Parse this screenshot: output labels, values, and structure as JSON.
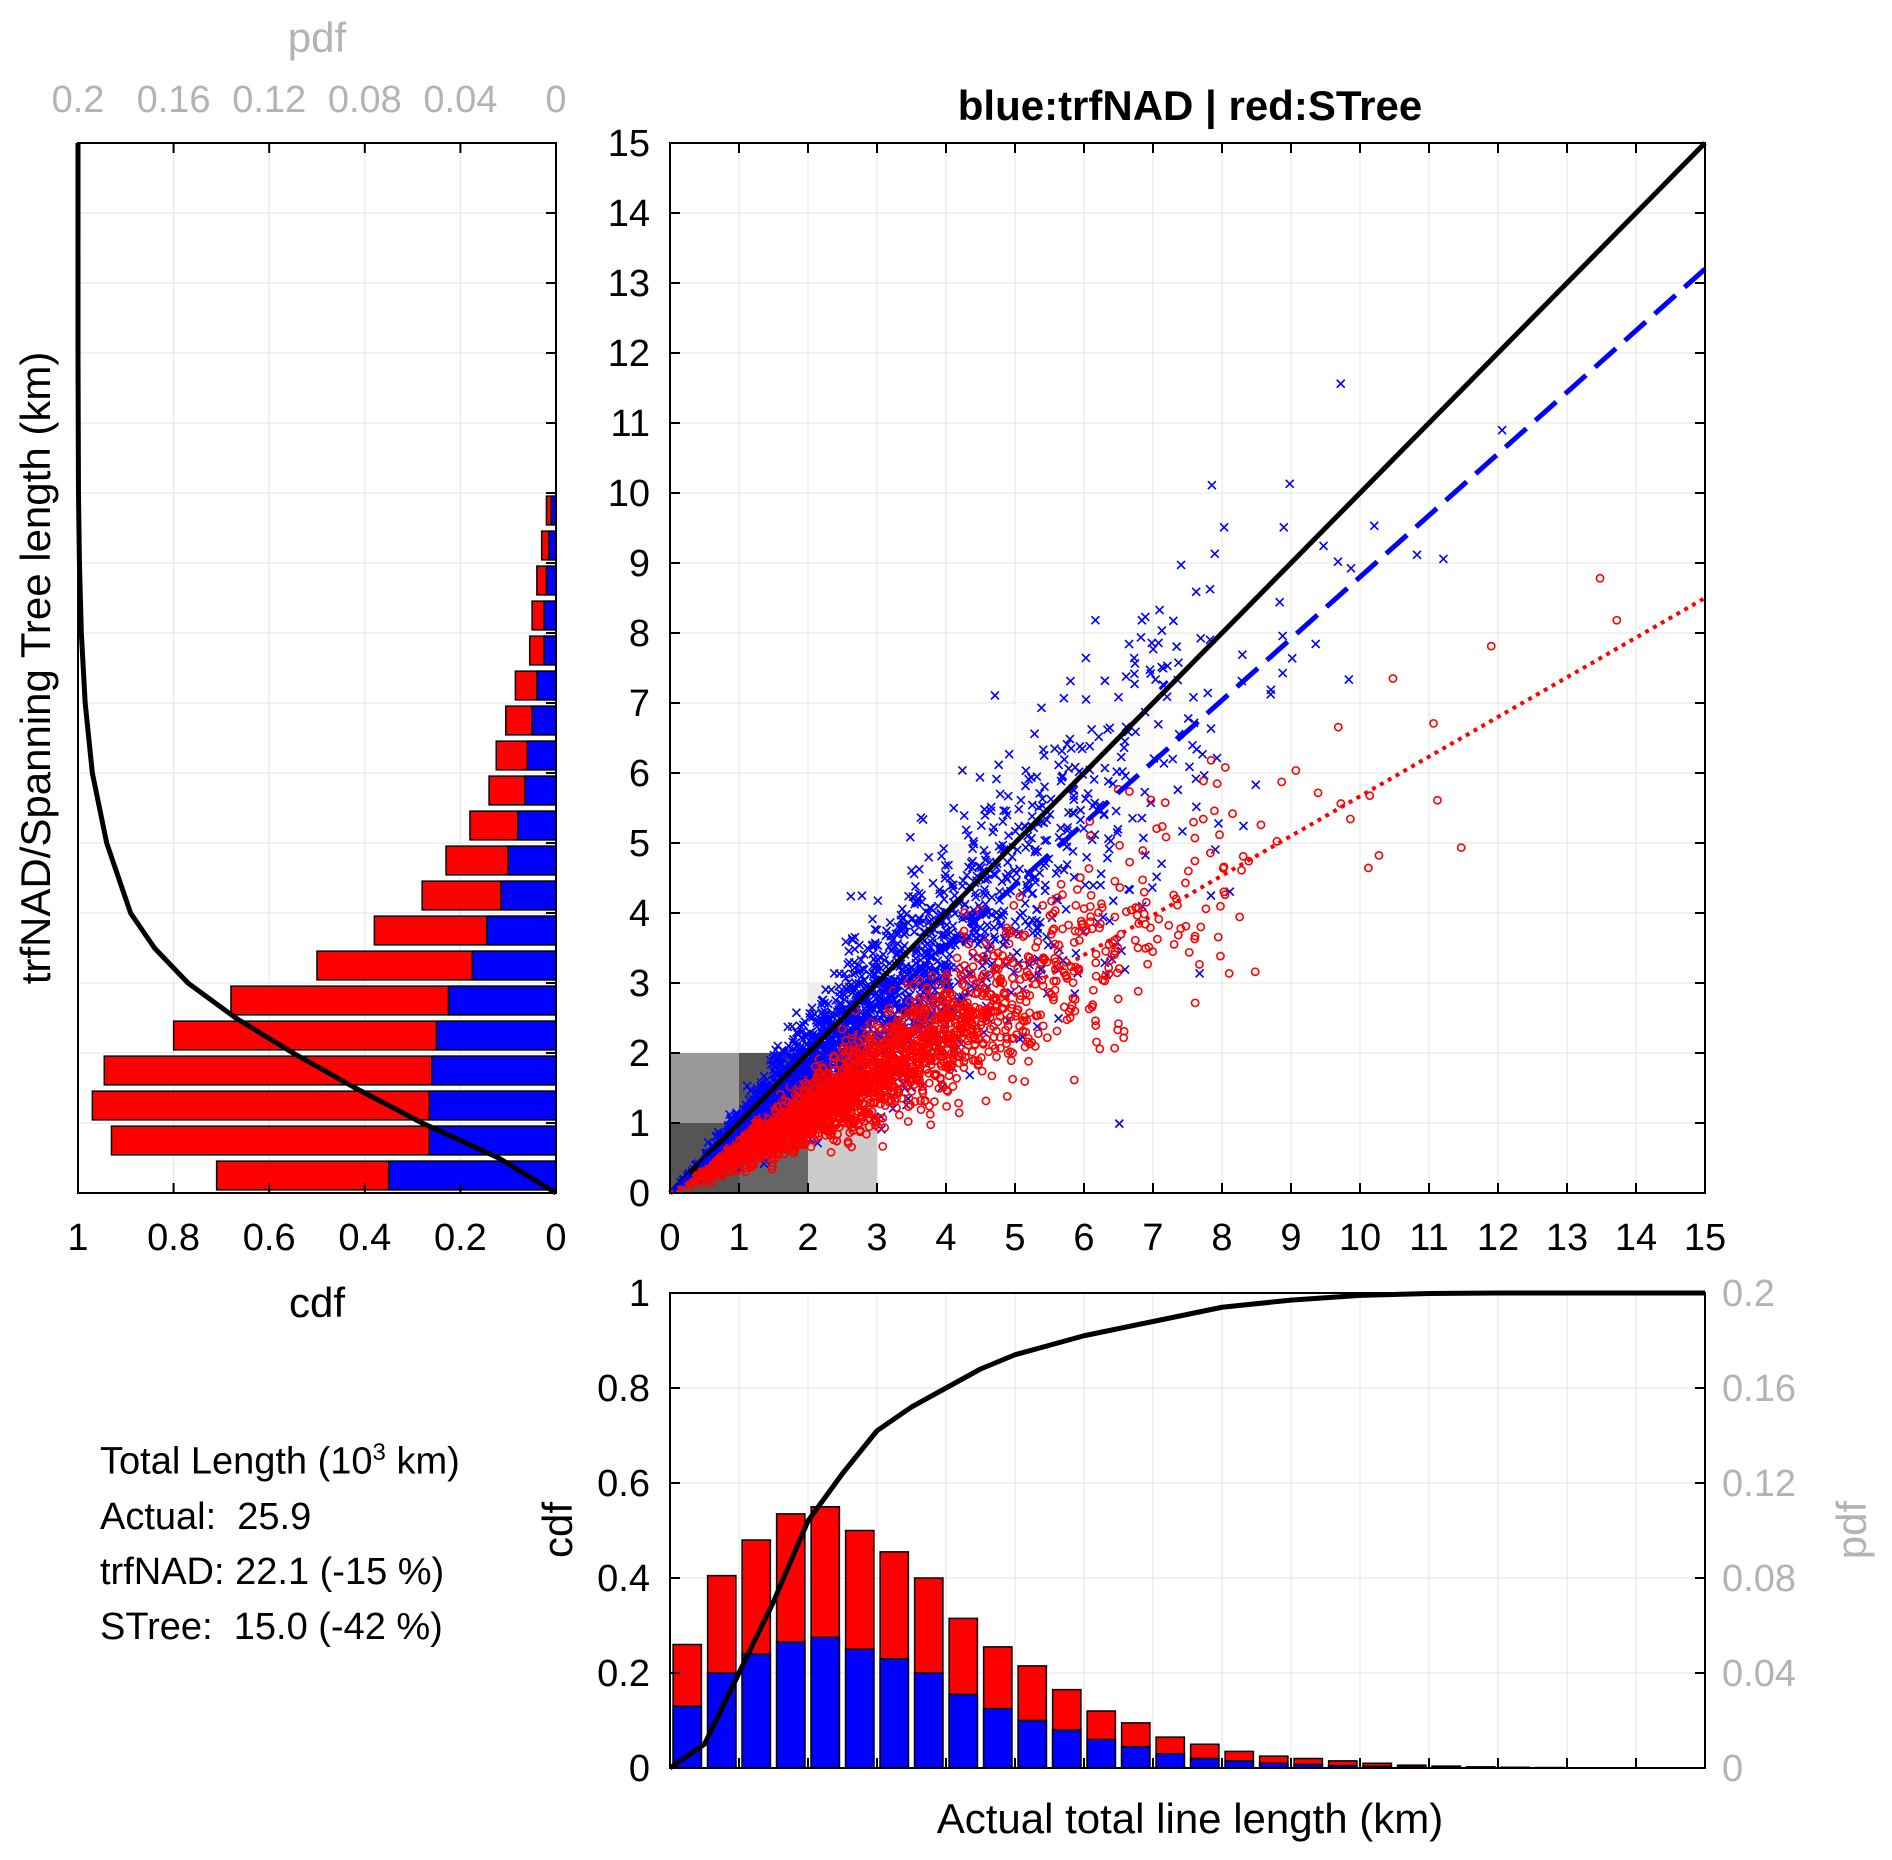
{
  "chart_data": [
    {
      "type": "scatter",
      "panel": "main",
      "title": "blue:trfNAD | red:STree",
      "xlabel": "",
      "ylabel": "",
      "xlim": [
        0,
        15
      ],
      "ylim": [
        0,
        15
      ],
      "xticks": [
        "0",
        "1",
        "2",
        "3",
        "4",
        "5",
        "6",
        "7",
        "8",
        "9",
        "10",
        "11",
        "12",
        "13",
        "14",
        "15"
      ],
      "yticks": [
        "0",
        "1",
        "2",
        "3",
        "4",
        "5",
        "6",
        "7",
        "8",
        "9",
        "10",
        "11",
        "12",
        "13",
        "14",
        "15"
      ],
      "series": [
        {
          "name": "trfNAD",
          "color": "#0000ff",
          "marker": "x",
          "fit_slope": 0.88,
          "spread": 0.22
        },
        {
          "name": "STree",
          "color": "#ff0000",
          "marker": "o",
          "fit_slope": 0.565,
          "spread": 0.2
        }
      ],
      "lines": [
        {
          "name": "y=x",
          "color": "#000000",
          "style": "solid",
          "from": [
            0,
            0
          ],
          "to": [
            15,
            15
          ]
        },
        {
          "name": "trfNAD fit",
          "color": "#0000ff",
          "style": "dashed",
          "from": [
            0,
            0
          ],
          "to": [
            15,
            13.2
          ]
        },
        {
          "name": "STree fit",
          "color": "#ff0000",
          "style": "dotted",
          "from": [
            0,
            0
          ],
          "to": [
            15,
            8.5
          ]
        }
      ]
    },
    {
      "type": "bar",
      "panel": "bottom",
      "xlabel": "Actual total line length (km)",
      "ylabel": "cdf",
      "y2label": "pdf",
      "ylim": [
        0,
        1
      ],
      "y2lim": [
        0,
        0.2
      ],
      "yticks": [
        "0",
        "0.2",
        "0.4",
        "0.6",
        "0.8",
        "1"
      ],
      "y2ticks": [
        "0",
        "0.04",
        "0.08",
        "0.12",
        "0.16",
        "0.2"
      ],
      "bin_centers": [
        0.5,
        1.0,
        1.5,
        2.0,
        2.5,
        3.0,
        3.5,
        4.0,
        4.5,
        5.0,
        5.5,
        6.0,
        6.5,
        7.0,
        7.5,
        8.0,
        8.5,
        9.0,
        9.5,
        10.0,
        10.5,
        11.0,
        11.5,
        12.0,
        12.5,
        13.0,
        13.5,
        14.0,
        14.5
      ],
      "series": [
        {
          "name": "trfNAD pdf",
          "color": "#0000ff",
          "values": [
            0.026,
            0.04,
            0.048,
            0.053,
            0.055,
            0.05,
            0.046,
            0.04,
            0.031,
            0.025,
            0.02,
            0.016,
            0.012,
            0.009,
            0.006,
            0.004,
            0.003,
            0.002,
            0.0015,
            0.001,
            0.0007,
            0.0005,
            0.0003,
            0.0002,
            0.0001,
            0.0001,
            5e-05,
            3e-05,
            2e-05
          ]
        },
        {
          "name": "STree pdf",
          "color": "#ff0000",
          "values": [
            0.052,
            0.081,
            0.096,
            0.107,
            0.11,
            0.1,
            0.091,
            0.08,
            0.063,
            0.051,
            0.043,
            0.033,
            0.024,
            0.019,
            0.013,
            0.01,
            0.007,
            0.005,
            0.004,
            0.003,
            0.002,
            0.0012,
            0.0008,
            0.0005,
            0.0003,
            0.0002,
            0.0001,
            6e-05,
            3e-05
          ]
        }
      ],
      "cdf": {
        "color": "#000000",
        "x": [
          0,
          0.5,
          1,
          1.5,
          2,
          2.5,
          3,
          3.5,
          4,
          4.5,
          5,
          5.5,
          6,
          7,
          8,
          9,
          10,
          11,
          12,
          13,
          15
        ],
        "y": [
          0,
          0.05,
          0.2,
          0.35,
          0.52,
          0.62,
          0.71,
          0.76,
          0.8,
          0.84,
          0.87,
          0.89,
          0.91,
          0.94,
          0.97,
          0.985,
          0.995,
          0.999,
          1,
          1,
          1
        ]
      }
    },
    {
      "type": "bar",
      "panel": "left",
      "orientation": "horizontal",
      "xlabel": "cdf",
      "x2label": "pdf",
      "ylabel": "trfNAD/Spanning Tree length (km)",
      "xlim": [
        0,
        1
      ],
      "x2lim": [
        0,
        0.2
      ],
      "xticks": [
        "1",
        "0.8",
        "0.6",
        "0.4",
        "0.2",
        "0"
      ],
      "x2ticks": [
        "0.2",
        "0.16",
        "0.12",
        "0.08",
        "0.04",
        "0"
      ],
      "bin_centers": [
        0.5,
        1.0,
        1.5,
        2.0,
        2.5,
        3.0,
        3.5,
        4.0,
        4.5,
        5.0,
        5.5,
        6.0,
        6.5,
        7.0,
        7.5,
        8.0,
        8.5,
        9.0,
        9.5,
        10.0
      ],
      "series": [
        {
          "name": "trfNAD pdf",
          "color": "#0000ff",
          "values": [
            0.07,
            0.053,
            0.053,
            0.052,
            0.05,
            0.045,
            0.035,
            0.029,
            0.023,
            0.02,
            0.016,
            0.013,
            0.012,
            0.01,
            0.008,
            0.005,
            0.005,
            0.004,
            0.003,
            0.002
          ]
        },
        {
          "name": "STree pdf",
          "color": "#ff0000",
          "values": [
            0.072,
            0.133,
            0.141,
            0.137,
            0.11,
            0.091,
            0.065,
            0.047,
            0.033,
            0.026,
            0.02,
            0.015,
            0.013,
            0.011,
            0.009,
            0.006,
            0.005,
            0.004,
            0.003,
            0.002
          ]
        }
      ],
      "cdf": {
        "color": "#000000",
        "x": [
          0,
          0.5,
          1,
          1.5,
          2,
          2.5,
          3,
          3.5,
          4,
          5,
          6,
          7,
          8,
          9,
          10,
          12,
          15
        ],
        "y": [
          0,
          0.12,
          0.28,
          0.42,
          0.55,
          0.67,
          0.77,
          0.84,
          0.89,
          0.94,
          0.97,
          0.985,
          0.993,
          0.997,
          0.999,
          1,
          1
        ]
      }
    }
  ],
  "stats": {
    "heading_pre": "Total Length (10",
    "heading_sup": "3",
    "heading_post": " km)",
    "actual": "Actual:  25.9",
    "trfnad": "trfNAD: 22.1 (-15 %)",
    "stree": "STree:  15.0 (-42 %)"
  }
}
